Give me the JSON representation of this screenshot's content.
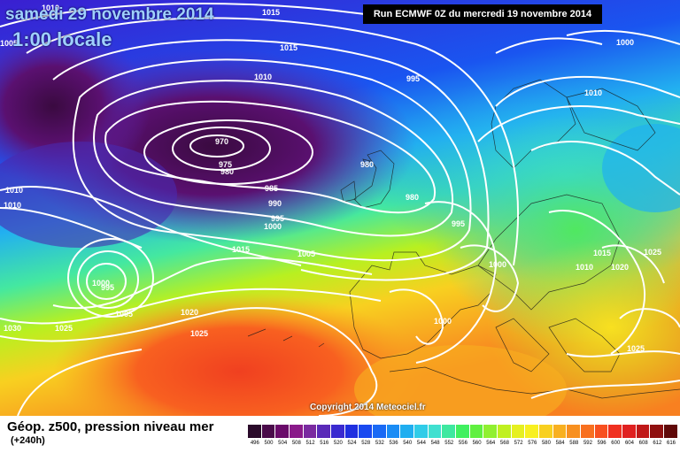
{
  "header": {
    "date": "samedi 29 novembre 2014",
    "hour": "1:00 locale",
    "run": "Run ECMWF 0Z du mercredi 19 novembre 2014"
  },
  "copyright": "Copyright 2014 Meteociel.fr",
  "legend": {
    "title": "Géop. z500, pression niveau mer",
    "subtitle": "(+240h)",
    "scale_ticks": [
      "496",
      "500",
      "504",
      "508",
      "512",
      "516",
      "520",
      "524",
      "528",
      "532",
      "536",
      "540",
      "544",
      "548",
      "552",
      "556",
      "560",
      "564",
      "568",
      "572",
      "576",
      "580",
      "584",
      "588",
      "592",
      "596",
      "600",
      "604",
      "608",
      "612",
      "616"
    ],
    "scale_colors": [
      "#2a0a2a",
      "#4a0a4a",
      "#6a0a6a",
      "#8a1a8a",
      "#7a2aa0",
      "#5a2ab8",
      "#3a2ad0",
      "#1f2fe0",
      "#1a4af0",
      "#1a6af5",
      "#1a8cf5",
      "#20aef0",
      "#30cce8",
      "#40e0d0",
      "#3ee8a0",
      "#40f060",
      "#60f040",
      "#90f030",
      "#c0f020",
      "#e6f020",
      "#f8f020",
      "#f8d020",
      "#f8b020",
      "#f89020",
      "#f87020",
      "#f85020",
      "#f03020",
      "#e02020",
      "#c01818",
      "#901010",
      "#600808"
    ]
  },
  "isobars": [
    "1010",
    "1015",
    "1015",
    "995",
    "1010",
    "1000",
    "1010",
    "970",
    "975",
    "980",
    "980",
    "980",
    "985",
    "990",
    "995",
    "1000",
    "995",
    "1010",
    "1015",
    "1005",
    "1000",
    "995",
    "1000",
    "1010",
    "1015",
    "1020",
    "1025",
    "1005",
    "1020",
    "1030",
    "1025",
    "1025",
    "1000",
    "1025",
    "1010",
    "1005"
  ]
}
